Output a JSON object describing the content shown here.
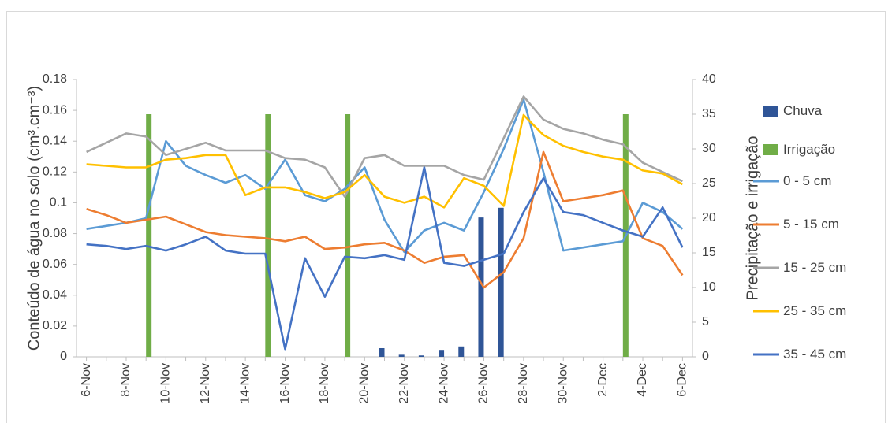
{
  "chart_data": {
    "type": "line",
    "y_label": "Conteúdo de água no solo (cm³.cm⁻³)",
    "y2_label": "Precipitação e irrigação",
    "categories": [
      "6-Nov",
      null,
      "8-Nov",
      null,
      "10-Nov",
      null,
      "12-Nov",
      null,
      "14-Nov",
      null,
      "16-Nov",
      null,
      "18-Nov",
      null,
      "20-Nov",
      null,
      "22-Nov",
      null,
      "24-Nov",
      null,
      "26-Nov",
      null,
      "28-Nov",
      null,
      "30-Nov",
      null,
      "2-Dec",
      null,
      "4-Dec",
      null,
      "6-Dec"
    ],
    "ylim": [
      0,
      0.18
    ],
    "yticks": [
      0,
      0.02,
      0.04,
      0.06,
      0.08,
      0.1,
      0.12,
      0.14,
      0.16,
      0.18
    ],
    "y2lim": [
      0,
      40
    ],
    "y2ticks": [
      0,
      5,
      10,
      15,
      20,
      25,
      30,
      35,
      40
    ],
    "grid": false,
    "legend": "right",
    "series": [
      {
        "name": "Chuva",
        "type": "bar",
        "axis": "y2",
        "color": "#2f5597",
        "values": [
          null,
          null,
          null,
          null,
          null,
          null,
          null,
          null,
          null,
          null,
          null,
          null,
          null,
          null,
          null,
          1.25,
          0.3,
          0.2,
          1.0,
          1.5,
          20.1,
          21.5,
          null,
          null,
          null,
          null,
          null,
          null,
          null,
          null,
          null
        ]
      },
      {
        "name": "Irrigação",
        "type": "bar",
        "axis": "y2",
        "color": "#70ad47",
        "values": [
          null,
          null,
          null,
          35,
          null,
          null,
          null,
          null,
          null,
          35,
          null,
          null,
          null,
          35,
          null,
          null,
          null,
          null,
          null,
          null,
          null,
          null,
          null,
          null,
          null,
          null,
          null,
          35,
          null,
          null,
          null
        ]
      },
      {
        "name": "0 - 5 cm",
        "type": "line",
        "color": "#5b9bd5",
        "values": [
          0.083,
          0.085,
          0.087,
          0.09,
          0.14,
          0.124,
          0.118,
          0.113,
          0.118,
          0.109,
          0.128,
          0.105,
          0.101,
          0.109,
          0.123,
          0.089,
          0.068,
          0.082,
          0.087,
          0.082,
          0.107,
          0.135,
          0.167,
          0.12,
          0.069,
          0.071,
          0.073,
          0.075,
          0.1,
          0.094,
          0.083
        ]
      },
      {
        "name": "5 - 15 cm",
        "type": "line",
        "color": "#ed7d31",
        "values": [
          0.096,
          0.092,
          0.087,
          0.089,
          0.091,
          0.086,
          0.081,
          0.079,
          0.078,
          0.077,
          0.075,
          0.078,
          0.07,
          0.071,
          0.073,
          0.074,
          0.069,
          0.061,
          0.065,
          0.066,
          0.045,
          0.055,
          0.077,
          0.133,
          0.101,
          0.103,
          0.105,
          0.108,
          0.077,
          0.072,
          0.053
        ]
      },
      {
        "name": "15 - 25 cm",
        "type": "line",
        "color": "#a5a5a5",
        "values": [
          0.133,
          0.139,
          0.145,
          0.143,
          0.131,
          0.135,
          0.139,
          0.134,
          0.134,
          0.134,
          0.129,
          0.128,
          0.123,
          0.104,
          0.129,
          0.131,
          0.124,
          0.124,
          0.124,
          0.118,
          0.115,
          0.142,
          0.169,
          0.154,
          0.148,
          0.145,
          0.141,
          0.138,
          0.126,
          0.12,
          0.114
        ]
      },
      {
        "name": "25 - 35 cm",
        "type": "line",
        "color": "#ffc000",
        "values": [
          0.125,
          0.124,
          0.123,
          0.123,
          0.128,
          0.129,
          0.131,
          0.131,
          0.105,
          0.11,
          0.11,
          0.107,
          0.103,
          0.107,
          0.118,
          0.104,
          0.1,
          0.104,
          0.097,
          0.116,
          0.111,
          0.098,
          0.157,
          0.144,
          0.137,
          0.133,
          0.13,
          0.128,
          0.121,
          0.119,
          0.112
        ]
      },
      {
        "name": "35 - 45 cm",
        "type": "line",
        "color": "#4472c4",
        "values": [
          0.073,
          0.072,
          0.07,
          0.072,
          0.069,
          0.073,
          0.078,
          0.069,
          0.067,
          0.067,
          0.005,
          0.064,
          0.039,
          0.065,
          0.064,
          0.066,
          0.063,
          0.123,
          0.061,
          0.059,
          0.063,
          0.067,
          0.094,
          0.116,
          0.094,
          0.092,
          0.087,
          0.082,
          0.078,
          0.097,
          0.071
        ]
      }
    ]
  }
}
